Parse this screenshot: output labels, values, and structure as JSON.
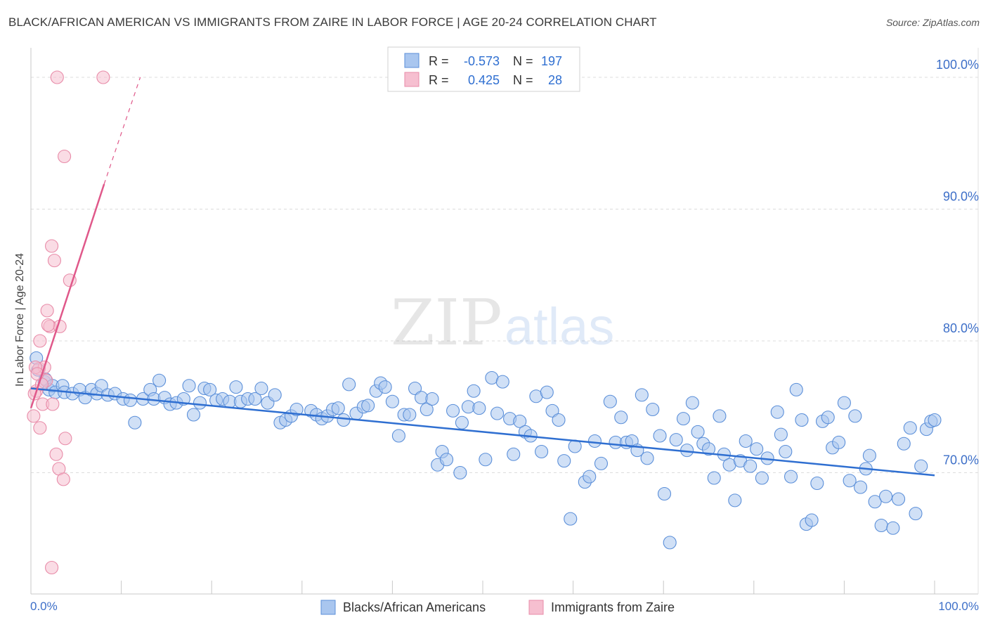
{
  "header": {
    "title": "BLACK/AFRICAN AMERICAN VS IMMIGRANTS FROM ZAIRE IN LABOR FORCE | AGE 20-24 CORRELATION CHART",
    "source": "Source: ZipAtlas.com"
  },
  "watermark": {
    "zip": "ZIP",
    "atlas": "atlas"
  },
  "colors": {
    "blue": "#5b8fd9",
    "blue_fill": "#a9c6ef",
    "blue_line": "#2f6fd1",
    "pink": "#e88ba8",
    "pink_fill": "#f6bfd0",
    "pink_line": "#e0588a",
    "axis_text": "#3d6fc8"
  },
  "stats": {
    "r_label": "R =",
    "n_label": "N =",
    "rows": [
      {
        "series": "Blacks/African Americans",
        "r": "-0.573",
        "n": "197"
      },
      {
        "series": "Immigrants from Zaire",
        "r": "0.425",
        "n": "28"
      }
    ]
  },
  "chart_data": {
    "type": "scatter",
    "title": "BLACK/AFRICAN AMERICAN VS IMMIGRANTS FROM ZAIRE IN LABOR FORCE | AGE 20-24 CORRELATION CHART",
    "xlabel": "",
    "ylabel": "In Labor Force | Age 20-24",
    "xlim": [
      0,
      100
    ],
    "ylim": [
      60.8,
      101.6
    ],
    "x_tick_labels": [
      "0.0%",
      "100.0%"
    ],
    "y_ticks": [
      70,
      80,
      90,
      100
    ],
    "y_tick_labels": [
      "70.0%",
      "80.0%",
      "90.0%",
      "100.0%"
    ],
    "grid": true,
    "legend": [
      "Blacks/African Americans",
      "Immigrants from Zaire"
    ],
    "series": [
      {
        "name": "Blacks/African Americans",
        "trend": {
          "x": [
            0,
            100
          ],
          "y": [
            76.4,
            69.8
          ]
        },
        "points": [
          [
            0.6,
            78.7
          ],
          [
            0.8,
            77.8
          ],
          [
            1.5,
            76.9
          ],
          [
            1.6,
            77.1
          ],
          [
            2.0,
            76.3
          ],
          [
            2.4,
            76.6
          ],
          [
            2.7,
            76.1
          ],
          [
            3.5,
            76.6
          ],
          [
            3.7,
            76.1
          ],
          [
            4.6,
            76.0
          ],
          [
            5.4,
            76.3
          ],
          [
            6.0,
            75.7
          ],
          [
            6.7,
            76.3
          ],
          [
            7.3,
            76.0
          ],
          [
            7.8,
            76.6
          ],
          [
            8.5,
            75.9
          ],
          [
            9.3,
            76.0
          ],
          [
            10.2,
            75.6
          ],
          [
            11.0,
            75.5
          ],
          [
            11.5,
            73.8
          ],
          [
            12.4,
            75.6
          ],
          [
            13.2,
            76.3
          ],
          [
            13.6,
            75.6
          ],
          [
            14.2,
            77.0
          ],
          [
            14.8,
            75.7
          ],
          [
            15.4,
            75.2
          ],
          [
            16.1,
            75.3
          ],
          [
            16.9,
            75.6
          ],
          [
            17.5,
            76.6
          ],
          [
            18.0,
            74.4
          ],
          [
            18.7,
            75.3
          ],
          [
            19.2,
            76.4
          ],
          [
            19.8,
            76.3
          ],
          [
            20.5,
            75.5
          ],
          [
            21.2,
            75.6
          ],
          [
            22.0,
            75.4
          ],
          [
            22.7,
            76.5
          ],
          [
            23.2,
            75.4
          ],
          [
            24.0,
            75.6
          ],
          [
            24.8,
            75.6
          ],
          [
            25.5,
            76.4
          ],
          [
            26.2,
            75.3
          ],
          [
            27.0,
            75.9
          ],
          [
            27.6,
            73.8
          ],
          [
            28.2,
            74.0
          ],
          [
            28.8,
            74.3
          ],
          [
            29.4,
            74.8
          ],
          [
            31.0,
            74.7
          ],
          [
            31.6,
            74.4
          ],
          [
            32.2,
            74.1
          ],
          [
            32.8,
            74.3
          ],
          [
            33.4,
            74.8
          ],
          [
            34.0,
            74.9
          ],
          [
            34.6,
            74.0
          ],
          [
            35.2,
            76.7
          ],
          [
            36.0,
            74.5
          ],
          [
            36.8,
            75.0
          ],
          [
            37.3,
            75.1
          ],
          [
            38.2,
            76.2
          ],
          [
            38.7,
            76.8
          ],
          [
            39.2,
            76.5
          ],
          [
            40.0,
            75.4
          ],
          [
            40.7,
            72.8
          ],
          [
            41.3,
            74.4
          ],
          [
            41.9,
            74.4
          ],
          [
            42.5,
            76.4
          ],
          [
            43.2,
            75.7
          ],
          [
            43.8,
            74.8
          ],
          [
            44.4,
            75.6
          ],
          [
            45.0,
            70.6
          ],
          [
            45.5,
            71.6
          ],
          [
            46.0,
            71.0
          ],
          [
            46.7,
            74.7
          ],
          [
            47.5,
            70.0
          ],
          [
            47.7,
            73.8
          ],
          [
            48.4,
            75.0
          ],
          [
            49.0,
            76.2
          ],
          [
            49.6,
            74.9
          ],
          [
            50.3,
            71.0
          ],
          [
            51.0,
            77.2
          ],
          [
            51.6,
            74.5
          ],
          [
            52.2,
            76.9
          ],
          [
            53.0,
            74.1
          ],
          [
            53.4,
            71.4
          ],
          [
            54.1,
            73.9
          ],
          [
            54.7,
            73.1
          ],
          [
            55.3,
            72.8
          ],
          [
            55.9,
            75.8
          ],
          [
            56.5,
            71.6
          ],
          [
            57.1,
            76.1
          ],
          [
            57.7,
            74.7
          ],
          [
            58.4,
            74.0
          ],
          [
            59.0,
            70.9
          ],
          [
            59.7,
            66.5
          ],
          [
            60.2,
            72.0
          ],
          [
            61.3,
            69.3
          ],
          [
            61.8,
            69.7
          ],
          [
            62.4,
            72.4
          ],
          [
            63.1,
            70.7
          ],
          [
            64.1,
            75.4
          ],
          [
            64.7,
            72.3
          ],
          [
            65.3,
            74.2
          ],
          [
            65.9,
            72.3
          ],
          [
            66.5,
            72.4
          ],
          [
            67.1,
            71.7
          ],
          [
            67.6,
            75.9
          ],
          [
            68.2,
            71.1
          ],
          [
            68.8,
            74.8
          ],
          [
            69.6,
            72.8
          ],
          [
            70.1,
            68.4
          ],
          [
            70.7,
            64.7
          ],
          [
            71.4,
            72.5
          ],
          [
            72.2,
            74.1
          ],
          [
            72.6,
            71.7
          ],
          [
            73.2,
            75.3
          ],
          [
            73.8,
            73.1
          ],
          [
            74.4,
            72.2
          ],
          [
            75.0,
            71.8
          ],
          [
            75.6,
            69.6
          ],
          [
            76.2,
            74.3
          ],
          [
            76.7,
            71.4
          ],
          [
            77.3,
            70.6
          ],
          [
            77.9,
            67.9
          ],
          [
            78.5,
            70.9
          ],
          [
            79.1,
            72.4
          ],
          [
            79.6,
            70.5
          ],
          [
            80.3,
            71.8
          ],
          [
            80.9,
            69.6
          ],
          [
            81.5,
            71.1
          ],
          [
            82.6,
            74.6
          ],
          [
            83.0,
            72.9
          ],
          [
            83.5,
            71.6
          ],
          [
            84.1,
            69.7
          ],
          [
            84.7,
            76.3
          ],
          [
            85.3,
            74.0
          ],
          [
            85.8,
            66.1
          ],
          [
            86.4,
            66.4
          ],
          [
            87.0,
            69.2
          ],
          [
            87.6,
            73.9
          ],
          [
            88.2,
            74.2
          ],
          [
            88.7,
            71.9
          ],
          [
            89.4,
            72.3
          ],
          [
            90.0,
            75.3
          ],
          [
            90.6,
            69.4
          ],
          [
            91.2,
            74.3
          ],
          [
            91.8,
            68.9
          ],
          [
            92.4,
            70.3
          ],
          [
            92.8,
            71.3
          ],
          [
            93.4,
            67.8
          ],
          [
            94.1,
            66.0
          ],
          [
            94.6,
            68.2
          ],
          [
            95.4,
            65.8
          ],
          [
            96.0,
            68.0
          ],
          [
            96.6,
            72.2
          ],
          [
            97.3,
            73.4
          ],
          [
            97.9,
            66.9
          ],
          [
            98.5,
            70.5
          ],
          [
            99.1,
            73.3
          ],
          [
            99.6,
            73.9
          ],
          [
            100.0,
            74.0
          ]
        ]
      },
      {
        "name": "Immigrants from Zaire",
        "trend": {
          "x": [
            0,
            8.1
          ],
          "y": [
            74.9,
            91.9
          ],
          "dashed_to": [
            12.1,
            100.0
          ]
        },
        "points": [
          [
            0.3,
            74.3
          ],
          [
            0.6,
            76.2
          ],
          [
            0.9,
            77.9
          ],
          [
            1.0,
            73.4
          ],
          [
            1.3,
            75.2
          ],
          [
            1.5,
            78.0
          ],
          [
            1.7,
            77.0
          ],
          [
            1.8,
            82.3
          ],
          [
            2.1,
            81.1
          ],
          [
            2.4,
            75.2
          ],
          [
            2.3,
            87.2
          ],
          [
            2.6,
            86.1
          ],
          [
            2.8,
            71.4
          ],
          [
            3.1,
            70.3
          ],
          [
            3.2,
            81.1
          ],
          [
            3.6,
            69.5
          ],
          [
            3.8,
            72.6
          ],
          [
            4.3,
            84.6
          ],
          [
            2.9,
            100.0
          ],
          [
            3.7,
            94.0
          ],
          [
            8.0,
            100.0
          ],
          [
            1.0,
            80.0
          ],
          [
            0.5,
            78.0
          ],
          [
            2.3,
            62.8
          ],
          [
            1.2,
            76.7
          ],
          [
            0.7,
            77.5
          ],
          [
            1.9,
            81.2
          ],
          [
            0.4,
            76.0
          ]
        ]
      }
    ]
  },
  "footer_legend": {
    "items": [
      "Blacks/African Americans",
      "Immigrants from Zaire"
    ]
  }
}
